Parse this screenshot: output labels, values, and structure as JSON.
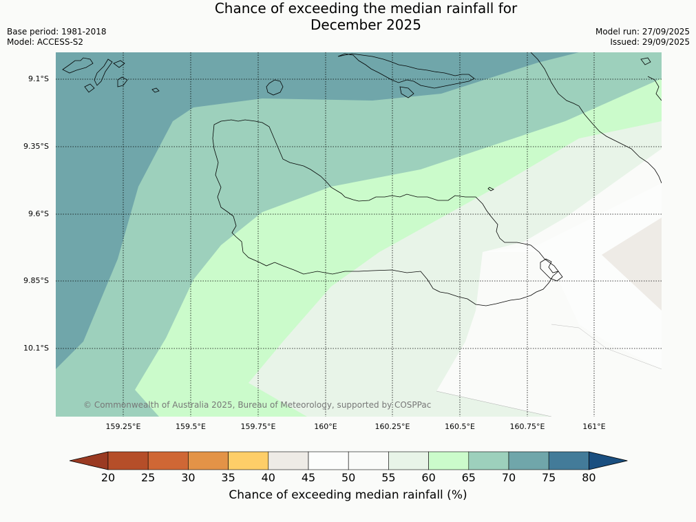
{
  "title_line1": "Chance of exceeding the median rainfall for",
  "title_line2": "December 2025",
  "meta_left": {
    "base_period": "Base period: 1981-2018",
    "model": "Model: ACCESS-S2"
  },
  "meta_right": {
    "model_run": "Model run: 27/09/2025",
    "issued": "Issued: 29/09/2025"
  },
  "copyright": "© Commonwealth of Australia 2025, Bureau of Meteorology, supported by COSPPac",
  "lat_labels": [
    "9.1°S",
    "9.35°S",
    "9.6°S",
    "9.85°S",
    "10.1°S"
  ],
  "lon_labels": [
    "159.25°E",
    "159.5°E",
    "159.75°E",
    "160°E",
    "160.25°E",
    "160.5°E",
    "160.75°E",
    "161°E"
  ],
  "colorbar": {
    "title": "Chance of exceeding median rainfall (%)",
    "ticks": [
      "20",
      "25",
      "30",
      "35",
      "40",
      "45",
      "50",
      "55",
      "60",
      "65",
      "70",
      "75",
      "80"
    ],
    "colors": [
      "#9a3a22",
      "#b54e29",
      "#cf6735",
      "#e39347",
      "#fece68",
      "#eeebe6",
      "#fcfdfc",
      "#fafbf9",
      "#e8f4e8",
      "#cbfbcb",
      "#9dd0bc",
      "#70a6aa",
      "#437b99",
      "#1a4f80"
    ]
  },
  "map": {
    "colors": {
      "c75": "#70a6aa",
      "c70": "#9dd0bc",
      "c65": "#cbfbcb",
      "c60": "#e8f4e8",
      "c55": "#fafbf9",
      "c50": "#fcfdfc",
      "c45": "#eeebe6"
    }
  }
}
